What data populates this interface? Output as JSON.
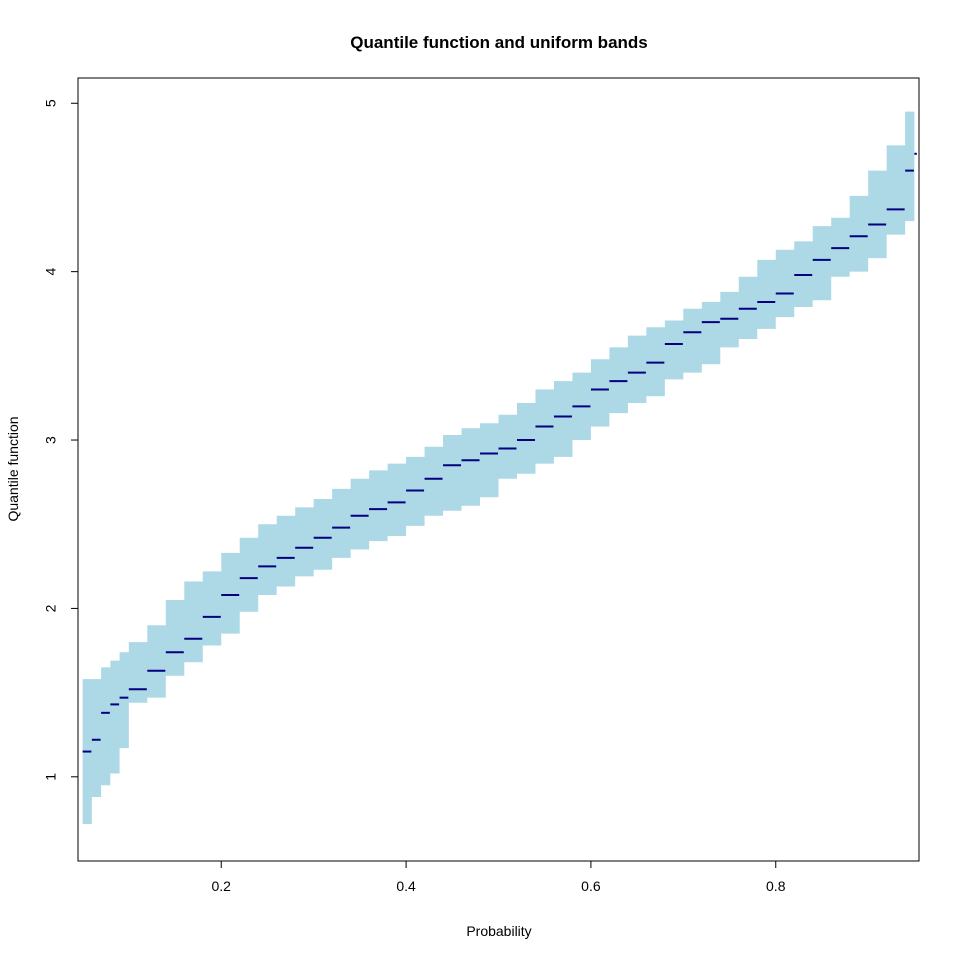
{
  "chart_data": {
    "type": "line",
    "title": "Quantile function and uniform bands",
    "xlabel": "Probability",
    "ylabel": "Quantile function",
    "xlim": [
      0.045,
      0.955
    ],
    "ylim": [
      0.5,
      5.15
    ],
    "x_ticks": [
      0.2,
      0.4,
      0.6,
      0.8
    ],
    "y_ticks": [
      1,
      2,
      3,
      4,
      5
    ],
    "grid": false,
    "legend": "none",
    "colors": {
      "band": "#add8e6",
      "line": "#000080"
    },
    "series": [
      {
        "role": "quantile",
        "x": [
          0.05,
          0.06,
          0.07,
          0.08,
          0.09,
          0.1,
          0.12,
          0.14,
          0.16,
          0.18,
          0.2,
          0.22,
          0.24,
          0.26,
          0.28,
          0.3,
          0.32,
          0.34,
          0.36,
          0.38,
          0.4,
          0.42,
          0.44,
          0.46,
          0.48,
          0.5,
          0.52,
          0.54,
          0.56,
          0.58,
          0.6,
          0.62,
          0.64,
          0.66,
          0.68,
          0.7,
          0.72,
          0.74,
          0.76,
          0.78,
          0.8,
          0.82,
          0.84,
          0.86,
          0.88,
          0.9,
          0.92,
          0.94,
          0.95
        ],
        "y": [
          1.15,
          1.22,
          1.38,
          1.43,
          1.47,
          1.52,
          1.63,
          1.74,
          1.82,
          1.95,
          2.08,
          2.18,
          2.25,
          2.3,
          2.36,
          2.42,
          2.48,
          2.55,
          2.59,
          2.63,
          2.7,
          2.77,
          2.85,
          2.88,
          2.92,
          2.95,
          3.0,
          3.08,
          3.14,
          3.2,
          3.3,
          3.35,
          3.4,
          3.46,
          3.57,
          3.64,
          3.7,
          3.72,
          3.78,
          3.82,
          3.87,
          3.98,
          4.07,
          4.14,
          4.21,
          4.28,
          4.37,
          4.6,
          4.7
        ]
      },
      {
        "role": "upper-band",
        "x": [
          0.05,
          0.06,
          0.07,
          0.08,
          0.09,
          0.1,
          0.12,
          0.14,
          0.16,
          0.18,
          0.2,
          0.22,
          0.24,
          0.26,
          0.28,
          0.3,
          0.32,
          0.34,
          0.36,
          0.38,
          0.4,
          0.42,
          0.44,
          0.46,
          0.48,
          0.5,
          0.52,
          0.54,
          0.56,
          0.58,
          0.6,
          0.62,
          0.64,
          0.66,
          0.68,
          0.7,
          0.72,
          0.74,
          0.76,
          0.78,
          0.8,
          0.82,
          0.84,
          0.86,
          0.88,
          0.9,
          0.92,
          0.94,
          0.95
        ],
        "y": [
          1.58,
          1.58,
          1.65,
          1.69,
          1.74,
          1.8,
          1.9,
          2.05,
          2.16,
          2.22,
          2.33,
          2.42,
          2.5,
          2.55,
          2.6,
          2.65,
          2.71,
          2.77,
          2.82,
          2.86,
          2.9,
          2.96,
          3.03,
          3.07,
          3.1,
          3.15,
          3.22,
          3.3,
          3.35,
          3.4,
          3.48,
          3.55,
          3.62,
          3.67,
          3.71,
          3.78,
          3.82,
          3.88,
          3.97,
          4.07,
          4.13,
          4.18,
          4.27,
          4.32,
          4.45,
          4.6,
          4.75,
          4.95,
          4.99
        ]
      },
      {
        "role": "lower-band",
        "x": [
          0.05,
          0.06,
          0.07,
          0.08,
          0.09,
          0.1,
          0.12,
          0.14,
          0.16,
          0.18,
          0.2,
          0.22,
          0.24,
          0.26,
          0.28,
          0.3,
          0.32,
          0.34,
          0.36,
          0.38,
          0.4,
          0.42,
          0.44,
          0.46,
          0.48,
          0.5,
          0.52,
          0.54,
          0.56,
          0.58,
          0.6,
          0.62,
          0.64,
          0.66,
          0.68,
          0.7,
          0.72,
          0.74,
          0.76,
          0.78,
          0.8,
          0.82,
          0.84,
          0.86,
          0.88,
          0.9,
          0.92,
          0.94,
          0.95
        ],
        "y": [
          0.72,
          0.88,
          0.95,
          1.02,
          1.17,
          1.44,
          1.47,
          1.6,
          1.68,
          1.78,
          1.85,
          1.98,
          2.08,
          2.13,
          2.19,
          2.23,
          2.3,
          2.35,
          2.4,
          2.43,
          2.49,
          2.55,
          2.58,
          2.61,
          2.66,
          2.77,
          2.8,
          2.86,
          2.9,
          3.0,
          3.08,
          3.16,
          3.22,
          3.26,
          3.36,
          3.4,
          3.45,
          3.55,
          3.6,
          3.66,
          3.73,
          3.79,
          3.83,
          3.97,
          4.0,
          4.08,
          4.22,
          4.3,
          4.3
        ]
      }
    ]
  }
}
